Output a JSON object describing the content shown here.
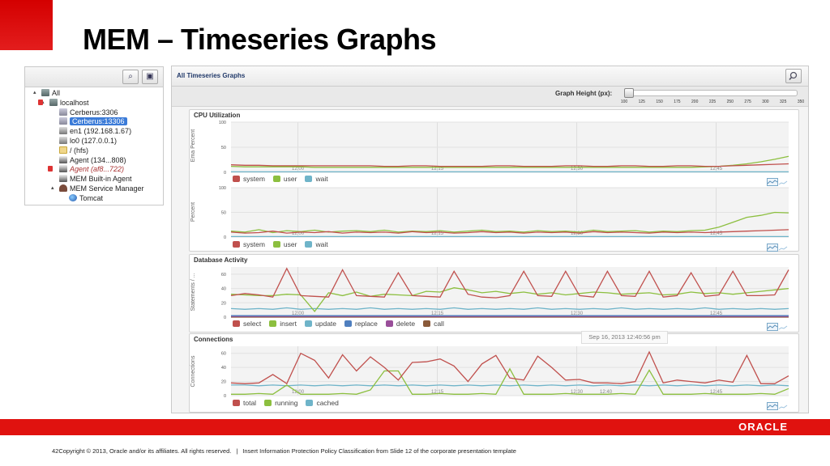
{
  "slide": {
    "title": "MEM – Timeseries Graphs",
    "oracle_logo": "ORACLE",
    "page_number": "4",
    "copyright": "2Copyright © 2013, Oracle and/or its affiliates. All rights reserved.",
    "separator": "|",
    "classification": "Insert Information Protection Policy Classification from Slide 12 of the corporate presentation template",
    "brand_red": "#e0120f"
  },
  "tree": {
    "toolbar_icons": [
      "search-icon",
      "view-icon"
    ],
    "nodes": [
      {
        "label": "All",
        "icon": "host-icon",
        "toggle": "▴"
      },
      {
        "label": "localhost",
        "icon": "host-icon",
        "toggle": "▴",
        "alert": true
      },
      {
        "label": "Cerberus:3306",
        "icon": "database-icon"
      },
      {
        "label": "Cerberus:13306",
        "icon": "database-icon",
        "selected": true
      },
      {
        "label": "en1 (192.168.1.67)",
        "icon": "network-icon"
      },
      {
        "label": "lo0 (127.0.0.1)",
        "icon": "network-icon"
      },
      {
        "label": "/ (hfs)",
        "icon": "folder-icon"
      },
      {
        "label": "Agent (134...808)",
        "icon": "agent-icon"
      },
      {
        "label": "Agent (af8...722)",
        "icon": "agent-icon",
        "alert": true,
        "italic": true
      },
      {
        "label": "MEM Built-in Agent",
        "icon": "agent-icon"
      },
      {
        "label": "MEM Service Manager",
        "icon": "cloud-icon",
        "toggle": "▴"
      },
      {
        "label": "Tomcat",
        "icon": "globe-icon"
      }
    ]
  },
  "main": {
    "title": "All Timeseries Graphs",
    "graph_height_label": "Graph Height (px):",
    "graph_height_ticks": [
      "100",
      "125",
      "150",
      "175",
      "200",
      "225",
      "250",
      "275",
      "300",
      "325",
      "350"
    ],
    "graph_height_value": 100,
    "tooltip": "Sep 16, 2013 12:40:56 pm",
    "sections": {
      "cpu": "CPU Utilization",
      "db": "Database Activity",
      "conn": "Connections"
    }
  },
  "chart_data": [
    {
      "type": "line",
      "title": "CPU Utilization",
      "ylabel": "Ema Percent",
      "ylim": [
        0,
        100
      ],
      "yticks": [
        "100",
        "50",
        "0"
      ],
      "xticks": [
        "12:00",
        "12:15",
        "12:30",
        "12:45"
      ],
      "series": [
        {
          "name": "system",
          "color": "#c0504d",
          "values": [
            15,
            14,
            14,
            13,
            13,
            13,
            13,
            13,
            13,
            13,
            13,
            12,
            12,
            13,
            13,
            12,
            12,
            12,
            12,
            13,
            13,
            12,
            12,
            12,
            13,
            13,
            12,
            12,
            13,
            13,
            12,
            12,
            13,
            13,
            12,
            12,
            13,
            14,
            15,
            16,
            17
          ]
        },
        {
          "name": "user",
          "color": "#8cbf3f",
          "values": [
            12,
            11,
            11,
            11,
            11,
            11,
            10,
            10,
            10,
            10,
            10,
            10,
            10,
            10,
            10,
            10,
            10,
            10,
            10,
            10,
            10,
            10,
            10,
            10,
            10,
            10,
            10,
            10,
            10,
            10,
            10,
            10,
            10,
            10,
            11,
            12,
            14,
            17,
            21,
            26,
            32
          ]
        },
        {
          "name": "wait",
          "color": "#6fb4c9",
          "values": [
            1,
            1,
            1,
            1,
            1,
            1,
            1,
            1,
            1,
            1,
            1,
            1,
            1,
            1,
            1,
            1,
            1,
            1,
            1,
            1,
            1,
            1,
            1,
            1,
            1,
            1,
            1,
            1,
            1,
            1,
            1,
            1,
            1,
            1,
            1,
            1,
            1,
            1,
            1,
            1,
            1
          ]
        }
      ]
    },
    {
      "type": "line",
      "title": "",
      "ylabel": "Percent",
      "ylim": [
        0,
        100
      ],
      "yticks": [
        "100",
        "50",
        "0"
      ],
      "xticks": [
        "12:00",
        "12:15",
        "12:30",
        "12:45"
      ],
      "series": [
        {
          "name": "system",
          "color": "#c0504d",
          "values": [
            10,
            8,
            9,
            12,
            8,
            10,
            9,
            11,
            8,
            10,
            9,
            10,
            8,
            11,
            9,
            10,
            8,
            9,
            11,
            9,
            10,
            8,
            10,
            9,
            10,
            8,
            11,
            9,
            10,
            9,
            8,
            10,
            9,
            10,
            9,
            10,
            11,
            12,
            13,
            14,
            15
          ]
        },
        {
          "name": "user",
          "color": "#8cbf3f",
          "values": [
            12,
            10,
            15,
            9,
            13,
            11,
            14,
            10,
            12,
            13,
            11,
            14,
            10,
            12,
            11,
            13,
            10,
            12,
            14,
            11,
            12,
            10,
            13,
            11,
            12,
            10,
            14,
            11,
            12,
            13,
            10,
            12,
            11,
            13,
            14,
            20,
            30,
            40,
            44,
            50,
            49
          ]
        },
        {
          "name": "wait",
          "color": "#6fb4c9",
          "values": [
            1,
            1,
            1,
            1,
            1,
            1,
            1,
            1,
            1,
            1,
            1,
            1,
            1,
            1,
            1,
            1,
            1,
            1,
            1,
            1,
            1,
            1,
            1,
            1,
            1,
            1,
            1,
            1,
            1,
            1,
            1,
            1,
            1,
            1,
            1,
            1,
            1,
            1,
            1,
            1,
            1
          ]
        }
      ]
    },
    {
      "type": "line",
      "title": "Database Activity",
      "ylabel": "Statements / ...",
      "ylim": [
        0,
        70
      ],
      "yticks": [
        "60",
        "40",
        "20",
        "0"
      ],
      "xticks": [
        "12:00",
        "12:15",
        "12:30",
        "12:45"
      ],
      "series": [
        {
          "name": "select",
          "color": "#c0504d",
          "values": [
            30,
            33,
            31,
            28,
            68,
            30,
            29,
            28,
            66,
            30,
            29,
            28,
            62,
            30,
            29,
            28,
            64,
            32,
            28,
            27,
            30,
            64,
            30,
            29,
            64,
            30,
            28,
            64,
            30,
            29,
            64,
            28,
            30,
            62,
            29,
            31,
            64,
            30,
            30,
            31,
            66
          ]
        },
        {
          "name": "insert",
          "color": "#8cbf3f",
          "values": [
            32,
            31,
            30,
            30,
            32,
            31,
            8,
            34,
            30,
            35,
            29,
            32,
            31,
            30,
            36,
            35,
            41,
            38,
            34,
            36,
            33,
            35,
            32,
            34,
            31,
            33,
            35,
            34,
            32,
            33,
            34,
            31,
            32,
            35,
            33,
            34,
            32,
            34,
            36,
            38,
            40
          ]
        },
        {
          "name": "update",
          "color": "#6fb4c9",
          "values": [
            12,
            11,
            12,
            11,
            13,
            11,
            12,
            11,
            12,
            11,
            13,
            11,
            12,
            11,
            12,
            11,
            13,
            11,
            12,
            11,
            12,
            11,
            13,
            11,
            12,
            11,
            12,
            11,
            13,
            11,
            12,
            11,
            12,
            11,
            13,
            11,
            12,
            11,
            12,
            11,
            12
          ]
        },
        {
          "name": "replace",
          "color": "#4f7fbf",
          "values": [
            2,
            2,
            2,
            2,
            2,
            2,
            2,
            2,
            2,
            2,
            2,
            2,
            2,
            2,
            2,
            2,
            2,
            2,
            2,
            2,
            2,
            2,
            2,
            2,
            2,
            2,
            2,
            2,
            2,
            2,
            2,
            2,
            2,
            2,
            2,
            2,
            2,
            2,
            2,
            2,
            2
          ]
        },
        {
          "name": "delete",
          "color": "#9a4f9a",
          "values": [
            1,
            1,
            1,
            1,
            1,
            1,
            1,
            1,
            1,
            1,
            1,
            1,
            1,
            1,
            1,
            1,
            1,
            1,
            1,
            1,
            1,
            1,
            1,
            1,
            1,
            1,
            1,
            1,
            1,
            1,
            1,
            1,
            1,
            1,
            1,
            1,
            1,
            1,
            1,
            1,
            1
          ]
        },
        {
          "name": "call",
          "color": "#8a5a3a",
          "values": [
            0,
            0,
            0,
            0,
            0,
            0,
            0,
            0,
            0,
            0,
            0,
            0,
            0,
            0,
            0,
            0,
            0,
            0,
            0,
            0,
            0,
            0,
            0,
            0,
            0,
            0,
            0,
            0,
            0,
            0,
            0,
            0,
            0,
            0,
            0,
            0,
            0,
            0,
            0,
            0,
            0
          ]
        }
      ]
    },
    {
      "type": "line",
      "title": "Connections",
      "ylabel": "Connections",
      "ylim": [
        0,
        70
      ],
      "yticks": [
        "60",
        "40",
        "20",
        "0"
      ],
      "xticks": [
        "12:00",
        "12:15",
        "12:30",
        "12:40",
        "12:45"
      ],
      "series": [
        {
          "name": "total",
          "color": "#c0504d",
          "values": [
            18,
            17,
            18,
            30,
            17,
            60,
            50,
            25,
            58,
            35,
            55,
            40,
            22,
            47,
            48,
            52,
            42,
            20,
            45,
            57,
            25,
            22,
            56,
            40,
            22,
            23,
            18,
            18,
            17,
            20,
            62,
            18,
            22,
            20,
            18,
            22,
            19,
            57,
            17,
            17,
            28
          ]
        },
        {
          "name": "running",
          "color": "#8cbf3f",
          "values": [
            2,
            2,
            3,
            2,
            15,
            2,
            2,
            2,
            3,
            2,
            8,
            35,
            35,
            2,
            2,
            3,
            2,
            2,
            3,
            2,
            38,
            2,
            2,
            2,
            3,
            2,
            2,
            2,
            3,
            2,
            36,
            2,
            2,
            2,
            3,
            2,
            2,
            2,
            3,
            2,
            10
          ]
        },
        {
          "name": "cached",
          "color": "#6fb4c9",
          "values": [
            15,
            15,
            14,
            15,
            14,
            15,
            14,
            15,
            14,
            15,
            14,
            15,
            14,
            15,
            14,
            15,
            14,
            15,
            14,
            15,
            14,
            15,
            14,
            15,
            14,
            15,
            14,
            15,
            14,
            15,
            14,
            15,
            14,
            15,
            14,
            15,
            14,
            15,
            14,
            15,
            14
          ]
        }
      ]
    }
  ]
}
